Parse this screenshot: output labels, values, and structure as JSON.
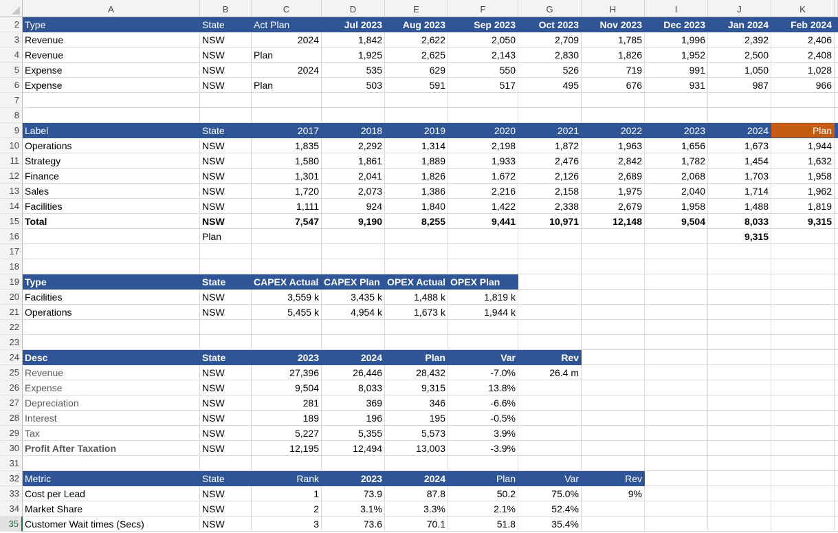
{
  "columns": [
    "A",
    "B",
    "C",
    "D",
    "E",
    "F",
    "G",
    "H",
    "I",
    "J",
    "K"
  ],
  "colors": {
    "header": "#2f5597",
    "highlight": "#c55a11",
    "selected_row": "#217346"
  },
  "selected_row": 35,
  "rows": {
    "2": {
      "cells": [
        "Type",
        "State",
        "Act Plan",
        "Jul 2023",
        "Aug 2023",
        "Sep 2023",
        "Oct 2023",
        "Nov 2023",
        "Dec 2023",
        "Jan 2024",
        "Feb 2024"
      ]
    },
    "3": {
      "cells": [
        "Revenue",
        "NSW",
        "2024",
        "1,842",
        "2,622",
        "2,050",
        "2,709",
        "1,785",
        "1,996",
        "2,392",
        "2,406"
      ]
    },
    "4": {
      "cells": [
        "Revenue",
        "NSW",
        "Plan",
        "1,925",
        "2,625",
        "2,143",
        "2,830",
        "1,826",
        "1,952",
        "2,500",
        "2,408"
      ]
    },
    "5": {
      "cells": [
        "Expense",
        "NSW",
        "2024",
        "535",
        "629",
        "550",
        "526",
        "719",
        "991",
        "1,050",
        "1,028"
      ]
    },
    "6": {
      "cells": [
        "Expense",
        "NSW",
        "Plan",
        "503",
        "591",
        "517",
        "495",
        "676",
        "931",
        "987",
        "966"
      ]
    },
    "7": {
      "cells": []
    },
    "8": {
      "cells": []
    },
    "9": {
      "cells": [
        "Label",
        "State",
        "2017",
        "2018",
        "2019",
        "2020",
        "2021",
        "2022",
        "2023",
        "2024",
        "Plan"
      ]
    },
    "10": {
      "cells": [
        "Operations",
        "NSW",
        "1,835",
        "2,292",
        "1,314",
        "2,198",
        "1,872",
        "1,963",
        "1,656",
        "1,673",
        "1,944"
      ]
    },
    "11": {
      "cells": [
        "Strategy",
        "NSW",
        "1,580",
        "1,861",
        "1,889",
        "1,933",
        "2,476",
        "2,842",
        "1,782",
        "1,454",
        "1,632"
      ]
    },
    "12": {
      "cells": [
        "Finance",
        "NSW",
        "1,301",
        "2,041",
        "1,826",
        "1,672",
        "2,126",
        "2,689",
        "2,068",
        "1,703",
        "1,958"
      ]
    },
    "13": {
      "cells": [
        "Sales",
        "NSW",
        "1,720",
        "2,073",
        "1,386",
        "2,216",
        "2,158",
        "1,975",
        "2,040",
        "1,714",
        "1,962"
      ]
    },
    "14": {
      "cells": [
        "Facilities",
        "NSW",
        "1,111",
        "924",
        "1,840",
        "1,422",
        "2,338",
        "2,679",
        "1,958",
        "1,488",
        "1,819"
      ]
    },
    "15": {
      "cells": [
        "Total",
        "NSW",
        "7,547",
        "9,190",
        "8,255",
        "9,441",
        "10,971",
        "12,148",
        "9,504",
        "8,033",
        "9,315"
      ]
    },
    "16": {
      "cells": [
        "",
        "Plan",
        "",
        "",
        "",
        "",
        "",
        "",
        "",
        "9,315",
        ""
      ]
    },
    "17": {
      "cells": []
    },
    "18": {
      "cells": []
    },
    "19": {
      "cells": [
        "Type",
        "State",
        "CAPEX Actual",
        "CAPEX Plan",
        "OPEX Actual",
        "OPEX Plan"
      ]
    },
    "20": {
      "cells": [
        "Facilities",
        "NSW",
        "3,559 k",
        "3,435 k",
        "1,488 k",
        "1,819 k"
      ]
    },
    "21": {
      "cells": [
        "Operations",
        "NSW",
        "5,455 k",
        "4,954 k",
        "1,673 k",
        "1,944 k"
      ]
    },
    "22": {
      "cells": []
    },
    "23": {
      "cells": []
    },
    "24": {
      "cells": [
        "Desc",
        "State",
        "2023",
        "2024",
        "Plan",
        "Var",
        "Rev"
      ]
    },
    "25": {
      "cells": [
        "Revenue",
        "NSW",
        "27,396",
        "26,446",
        "28,432",
        "-7.0%",
        "26.4 m"
      ]
    },
    "26": {
      "cells": [
        "Expense",
        "NSW",
        "9,504",
        "8,033",
        "9,315",
        "13.8%",
        ""
      ]
    },
    "27": {
      "cells": [
        "Depreciation",
        "NSW",
        "281",
        "369",
        "346",
        "-6.6%",
        ""
      ]
    },
    "28": {
      "cells": [
        "Interest",
        "NSW",
        "189",
        "196",
        "195",
        "-0.5%",
        ""
      ]
    },
    "29": {
      "cells": [
        "Tax",
        "NSW",
        "5,227",
        "5,355",
        "5,573",
        "3.9%",
        ""
      ]
    },
    "30": {
      "cells": [
        "Profit After Taxation",
        "NSW",
        "12,195",
        "12,494",
        "13,003",
        "-3.9%",
        ""
      ]
    },
    "31": {
      "cells": []
    },
    "32": {
      "cells": [
        "Metric",
        "State",
        "Rank",
        "2023",
        "2024",
        "Plan",
        "Var",
        "Rev"
      ]
    },
    "33": {
      "cells": [
        "Cost per Lead",
        "NSW",
        "1",
        "73.9",
        "87.8",
        "50.2",
        "75.0%",
        "9%"
      ]
    },
    "34": {
      "cells": [
        "Market Share",
        "NSW",
        "2",
        "3.1%",
        "3.3%",
        "2.1%",
        "52.4%",
        ""
      ]
    },
    "35": {
      "cells": [
        "Customer Wait times (Secs)",
        "NSW",
        "3",
        "73.6",
        "70.1",
        "51.8",
        "35.4%",
        ""
      ]
    }
  }
}
